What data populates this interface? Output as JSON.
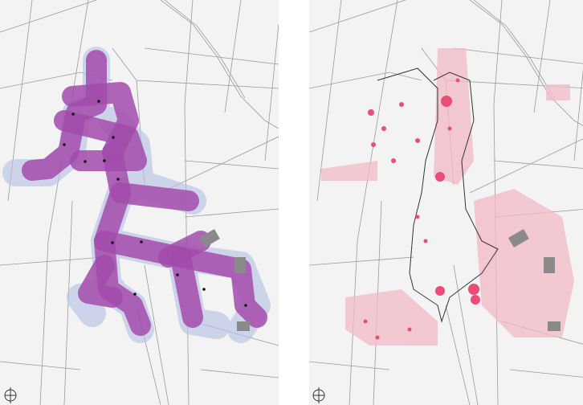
{
  "maps": [
    {
      "id": "left",
      "overlay_color": "#a24bab",
      "halo_color": "#b9c4e6"
    },
    {
      "id": "right",
      "overlay_color": "#f2b9c6",
      "dot_color": "#ea4d78",
      "outline_color": "#333333"
    }
  ],
  "colors": {
    "paper": "#f3f3f3",
    "road": "#9a9a9a",
    "building": "#7a7a7a"
  },
  "icons": [
    "north-arrow-icon"
  ]
}
